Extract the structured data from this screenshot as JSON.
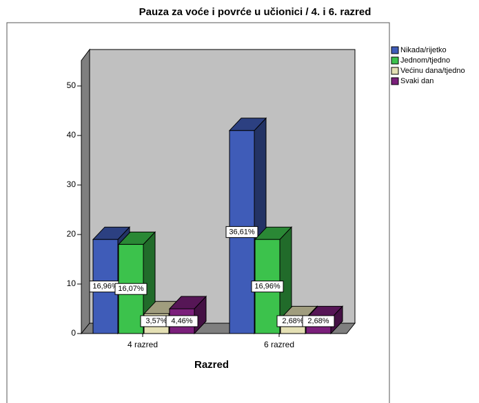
{
  "chart_data": {
    "type": "bar3d",
    "title": "Pauza za voće i povrće u učionici / 4. i 6. razred",
    "x_label": "Razred",
    "categories": [
      "4 razred",
      "6 razred"
    ],
    "series": [
      {
        "name": "Nikada/rijetko",
        "color": "#3f5cb8",
        "values": [
          19,
          41
        ],
        "value_labels": [
          "16,96%",
          "36,61%"
        ]
      },
      {
        "name": "Jednom/tjedno",
        "color": "#3cc24c",
        "values": [
          18,
          19
        ],
        "value_labels": [
          "16,07%",
          "16,96%"
        ]
      },
      {
        "name": "Većinu dana/tjedno",
        "color": "#e4e0b4",
        "values": [
          4,
          3
        ],
        "value_labels": [
          "3,57%",
          "2,68%"
        ]
      },
      {
        "name": "Svaki dan",
        "color": "#7b1f7b",
        "values": [
          5,
          3
        ],
        "value_labels": [
          "4,46%",
          "2,68%"
        ]
      }
    ],
    "ylim": [
      0,
      50
    ],
    "yticks": [
      0,
      10,
      20,
      30,
      40,
      50
    ],
    "legend": "right"
  }
}
